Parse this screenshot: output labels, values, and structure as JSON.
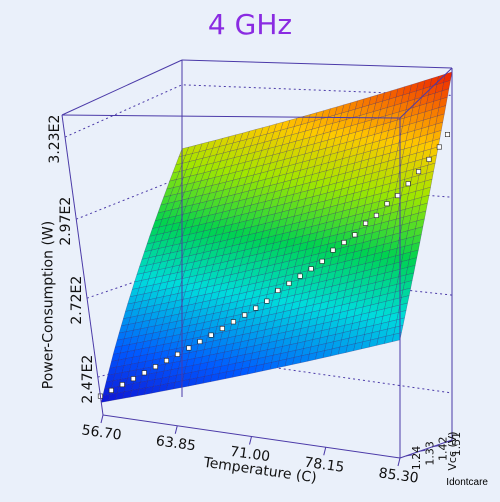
{
  "chart_data": {
    "type": "surface3d",
    "title": "4 GHz",
    "xlabel": "Temperature (C)",
    "ylabel": "Vcc (V)",
    "zlabel": "Power-Consumption (W)",
    "x_ticks": [
      "56.70",
      "63.85",
      "71.00",
      "78.15",
      "85.30"
    ],
    "x_range": [
      56.7,
      85.3
    ],
    "y_ticks": [
      "1.24",
      "1.33",
      "1.42",
      "1.51"
    ],
    "y_range": [
      1.2,
      1.55
    ],
    "z_ticks": [
      "2.47E2",
      "2.72E2",
      "2.97E2",
      "3.23E2"
    ],
    "z_range": [
      235,
      330
    ],
    "surface": {
      "corner_values": {
        "tmin_vmin": 239,
        "tmax_vmin": 268,
        "tmin_vmax": 305,
        "tmax_vmax": 329
      },
      "grid": [
        40,
        34
      ],
      "colormap": "rainbow (blue low to red high)"
    },
    "points_series": {
      "marker": "white square",
      "points": [
        [
          56.7,
          1.2,
          239
        ],
        [
          57.6,
          1.21,
          241
        ],
        [
          58.5,
          1.22,
          243
        ],
        [
          59.4,
          1.23,
          245
        ],
        [
          60.3,
          1.24,
          247
        ],
        [
          61.2,
          1.25,
          249
        ],
        [
          62.1,
          1.26,
          251
        ],
        [
          63.0,
          1.27,
          253
        ],
        [
          63.9,
          1.28,
          255
        ],
        [
          64.8,
          1.29,
          257
        ],
        [
          65.7,
          1.3,
          259
        ],
        [
          66.6,
          1.31,
          261
        ],
        [
          67.5,
          1.32,
          263
        ],
        [
          68.4,
          1.33,
          265
        ],
        [
          69.3,
          1.34,
          267
        ],
        [
          70.2,
          1.35,
          269
        ],
        [
          71.1,
          1.36,
          272
        ],
        [
          72.0,
          1.37,
          274
        ],
        [
          72.9,
          1.38,
          276
        ],
        [
          73.8,
          1.39,
          278
        ],
        [
          74.7,
          1.4,
          280
        ],
        [
          75.6,
          1.41,
          283
        ],
        [
          76.5,
          1.42,
          285
        ],
        [
          77.4,
          1.43,
          287
        ],
        [
          78.3,
          1.44,
          290
        ],
        [
          79.2,
          1.45,
          292
        ],
        [
          80.1,
          1.46,
          295
        ],
        [
          81.0,
          1.47,
          297
        ],
        [
          81.9,
          1.48,
          300
        ],
        [
          82.8,
          1.49,
          303
        ],
        [
          83.7,
          1.5,
          306
        ],
        [
          84.6,
          1.51,
          309
        ],
        [
          85.3,
          1.52,
          312
        ]
      ]
    }
  },
  "footer": {
    "credit": "Idontcare"
  }
}
